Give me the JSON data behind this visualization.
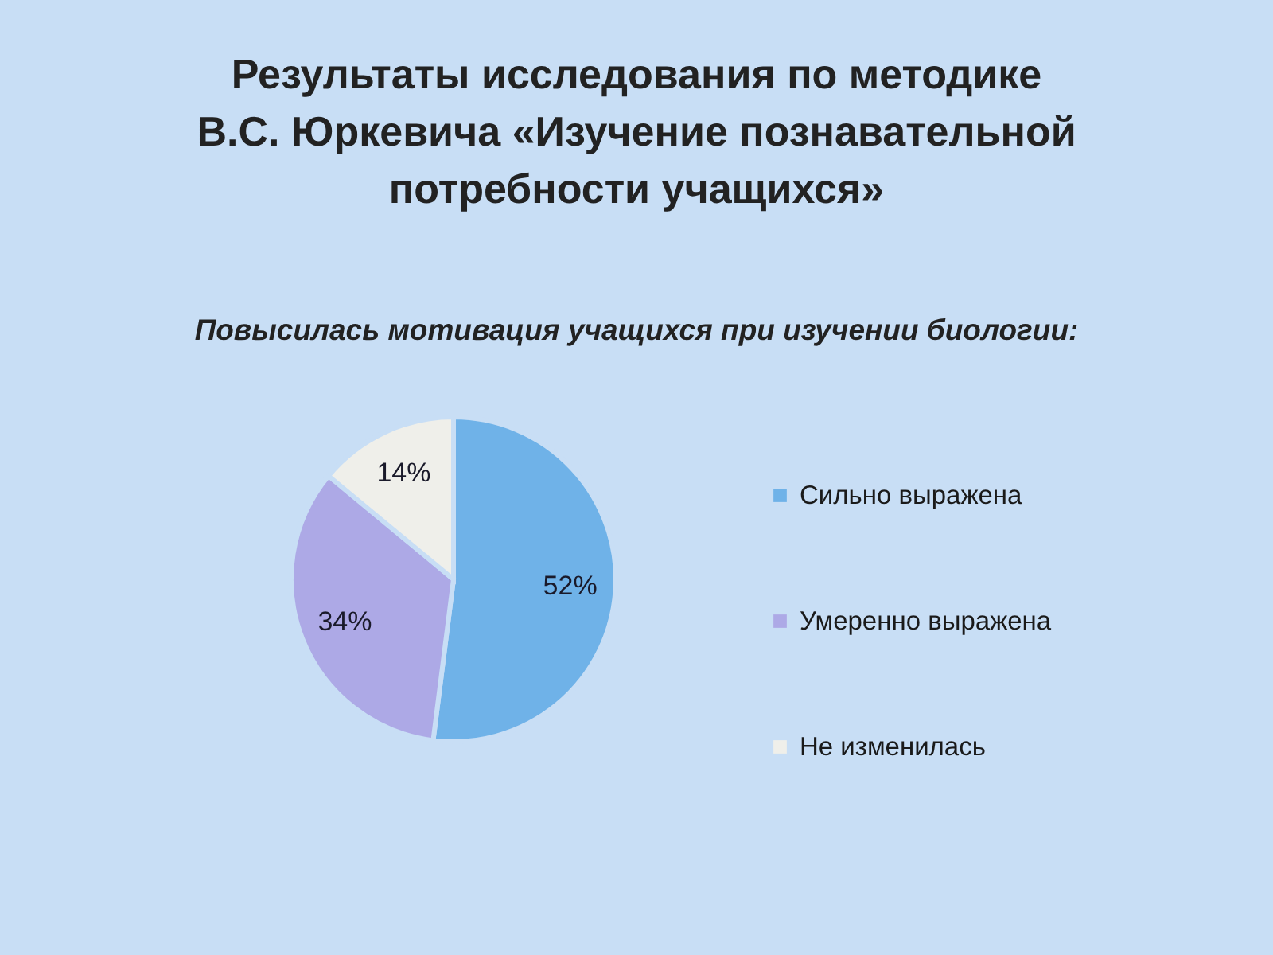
{
  "chart_data": {
    "type": "pie",
    "title": "Результаты исследования по методике\nВ.С. Юркевича «Изучение познавательной\nпотребности учащихся»",
    "subtitle": "Повысилась мотивация учащихся при изучении биологии:",
    "categories": [
      "Сильно выражена",
      "Умеренно выражена",
      "Не изменилась"
    ],
    "values": [
      52,
      34,
      14
    ],
    "colors": [
      "#6fb2e8",
      "#ada9e6",
      "#efefea"
    ],
    "value_labels": [
      "52%",
      "34%",
      "14%"
    ],
    "legend": "right"
  }
}
